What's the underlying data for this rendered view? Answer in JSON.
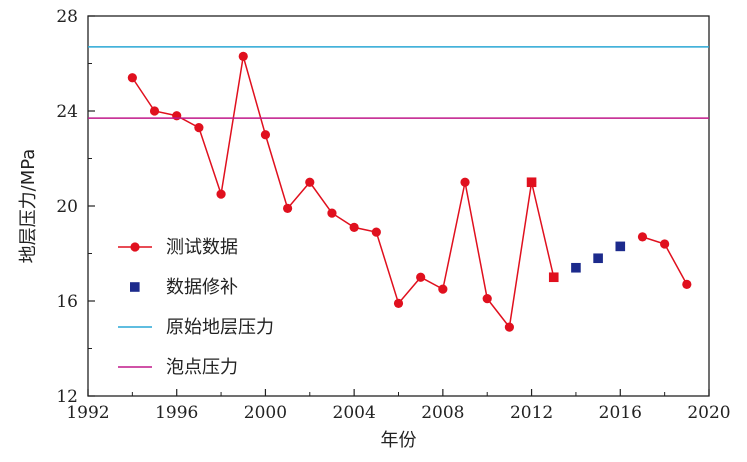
{
  "chart_data": {
    "type": "line",
    "xlabel": "年份",
    "ylabel": "地层压力/MPa",
    "xlim": [
      1992,
      2020
    ],
    "ylim": [
      12,
      28
    ],
    "xticks": [
      1992,
      1996,
      2000,
      2004,
      2008,
      2012,
      2016,
      2020
    ],
    "yticks": [
      12,
      16,
      20,
      24,
      28
    ],
    "grid": false,
    "legend_position": "lower-left",
    "series": [
      {
        "name": "测试数据",
        "style": "line-circle",
        "color": "#e0101e",
        "x": [
          1994,
          1995,
          1996,
          1997,
          1998,
          1999,
          2000,
          2001,
          2002,
          2003,
          2004,
          2005,
          2006,
          2007,
          2008,
          2009,
          2010,
          2011,
          2012,
          2013,
          2017,
          2018,
          2019
        ],
        "y": [
          25.4,
          24.0,
          23.8,
          23.3,
          20.5,
          26.3,
          23.0,
          19.9,
          21.0,
          19.7,
          19.1,
          18.9,
          15.9,
          17.0,
          16.5,
          21.0,
          16.1,
          14.9,
          21.0,
          17.0,
          18.7,
          18.4,
          16.7
        ]
      },
      {
        "name": "数据修补",
        "style": "square",
        "color": "#1c2a8c",
        "x": [
          2014,
          2015,
          2016
        ],
        "y": [
          17.4,
          17.8,
          18.3
        ]
      },
      {
        "name": "原始地层压力",
        "style": "hline",
        "color": "#2aa7d5",
        "y": 26.7
      },
      {
        "name": "泡点压力",
        "style": "hline",
        "color": "#c0188a",
        "y": 23.7
      }
    ],
    "square_overlay_points": [
      {
        "x": 2012,
        "y": 21.0
      },
      {
        "x": 2013,
        "y": 17.0
      }
    ]
  }
}
